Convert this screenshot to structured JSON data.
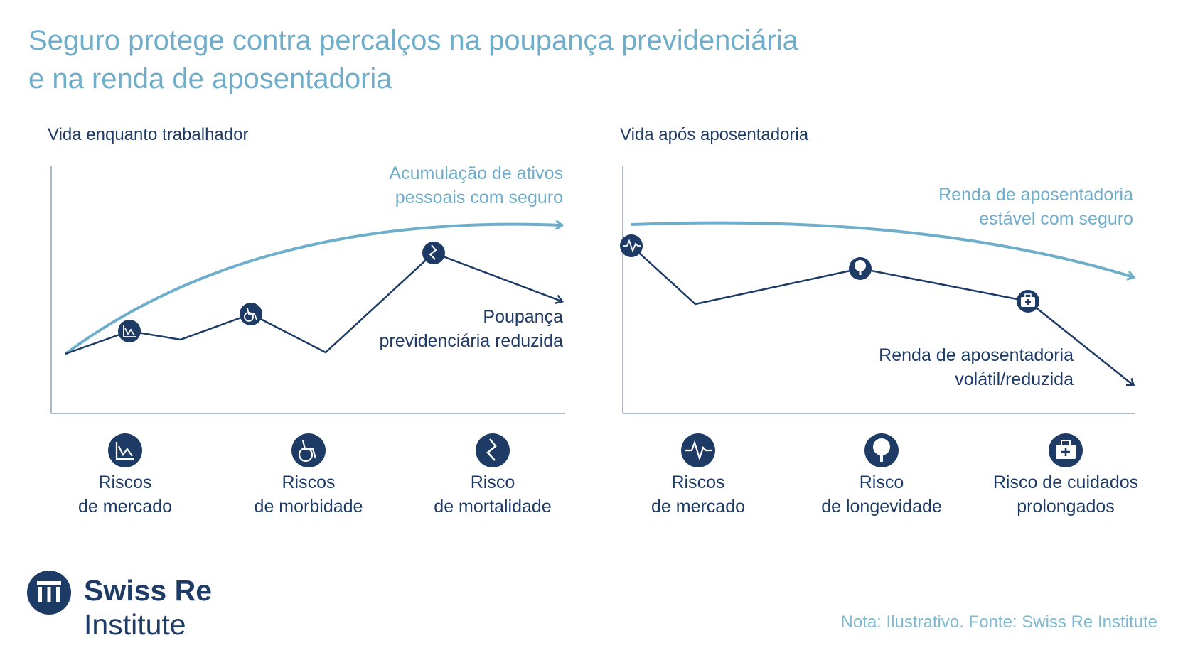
{
  "title_line1": "Seguro protege contra percalços na poupança previdenciária",
  "title_line2": "e na renda de aposentadoria",
  "note": "Nota: Ilustrativo. Fonte: Swiss Re Institute",
  "logo": {
    "line1": "Swiss Re",
    "line2": "Institute"
  },
  "colors": {
    "light": "#6eaecb",
    "dark": "#1e3b66",
    "axis": "#8fa3ba"
  },
  "chart_data": [
    {
      "type": "line",
      "title": "Vida enquanto trabalhador",
      "series": [
        {
          "name": "Acumulação de ativos pessoais com seguro",
          "name_lines": [
            "Acumulação de ativos",
            "pessoais com seguro"
          ]
        },
        {
          "name": "Poupança previdenciária reduzida",
          "name_lines": [
            "Poupança",
            "previdenciária reduzida"
          ]
        }
      ],
      "risks": [
        {
          "icon": "market-chart-icon",
          "lines": [
            "Riscos",
            "de mercado"
          ]
        },
        {
          "icon": "wheelchair-icon",
          "lines": [
            "Riscos",
            "de morbidade"
          ]
        },
        {
          "icon": "broken-line-icon",
          "lines": [
            "Risco",
            "de mortalidade"
          ]
        }
      ]
    },
    {
      "type": "line",
      "title": "Vida após aposentadoria",
      "series": [
        {
          "name": "Renda de aposentadoria estável com seguro",
          "name_lines": [
            "Renda de aposentadoria",
            "estável com seguro"
          ]
        },
        {
          "name": "Renda de aposentadoria volátil/reduzida",
          "name_lines": [
            "Renda de aposentadoria",
            "volátil/reduzida"
          ]
        }
      ],
      "risks": [
        {
          "icon": "heartbeat-icon",
          "lines": [
            "Riscos",
            "de mercado"
          ]
        },
        {
          "icon": "tree-icon",
          "lines": [
            "Risco",
            "de longevidade"
          ]
        },
        {
          "icon": "medical-kit-icon",
          "lines": [
            "Risco de cuidados",
            "prolongados"
          ]
        }
      ]
    }
  ]
}
